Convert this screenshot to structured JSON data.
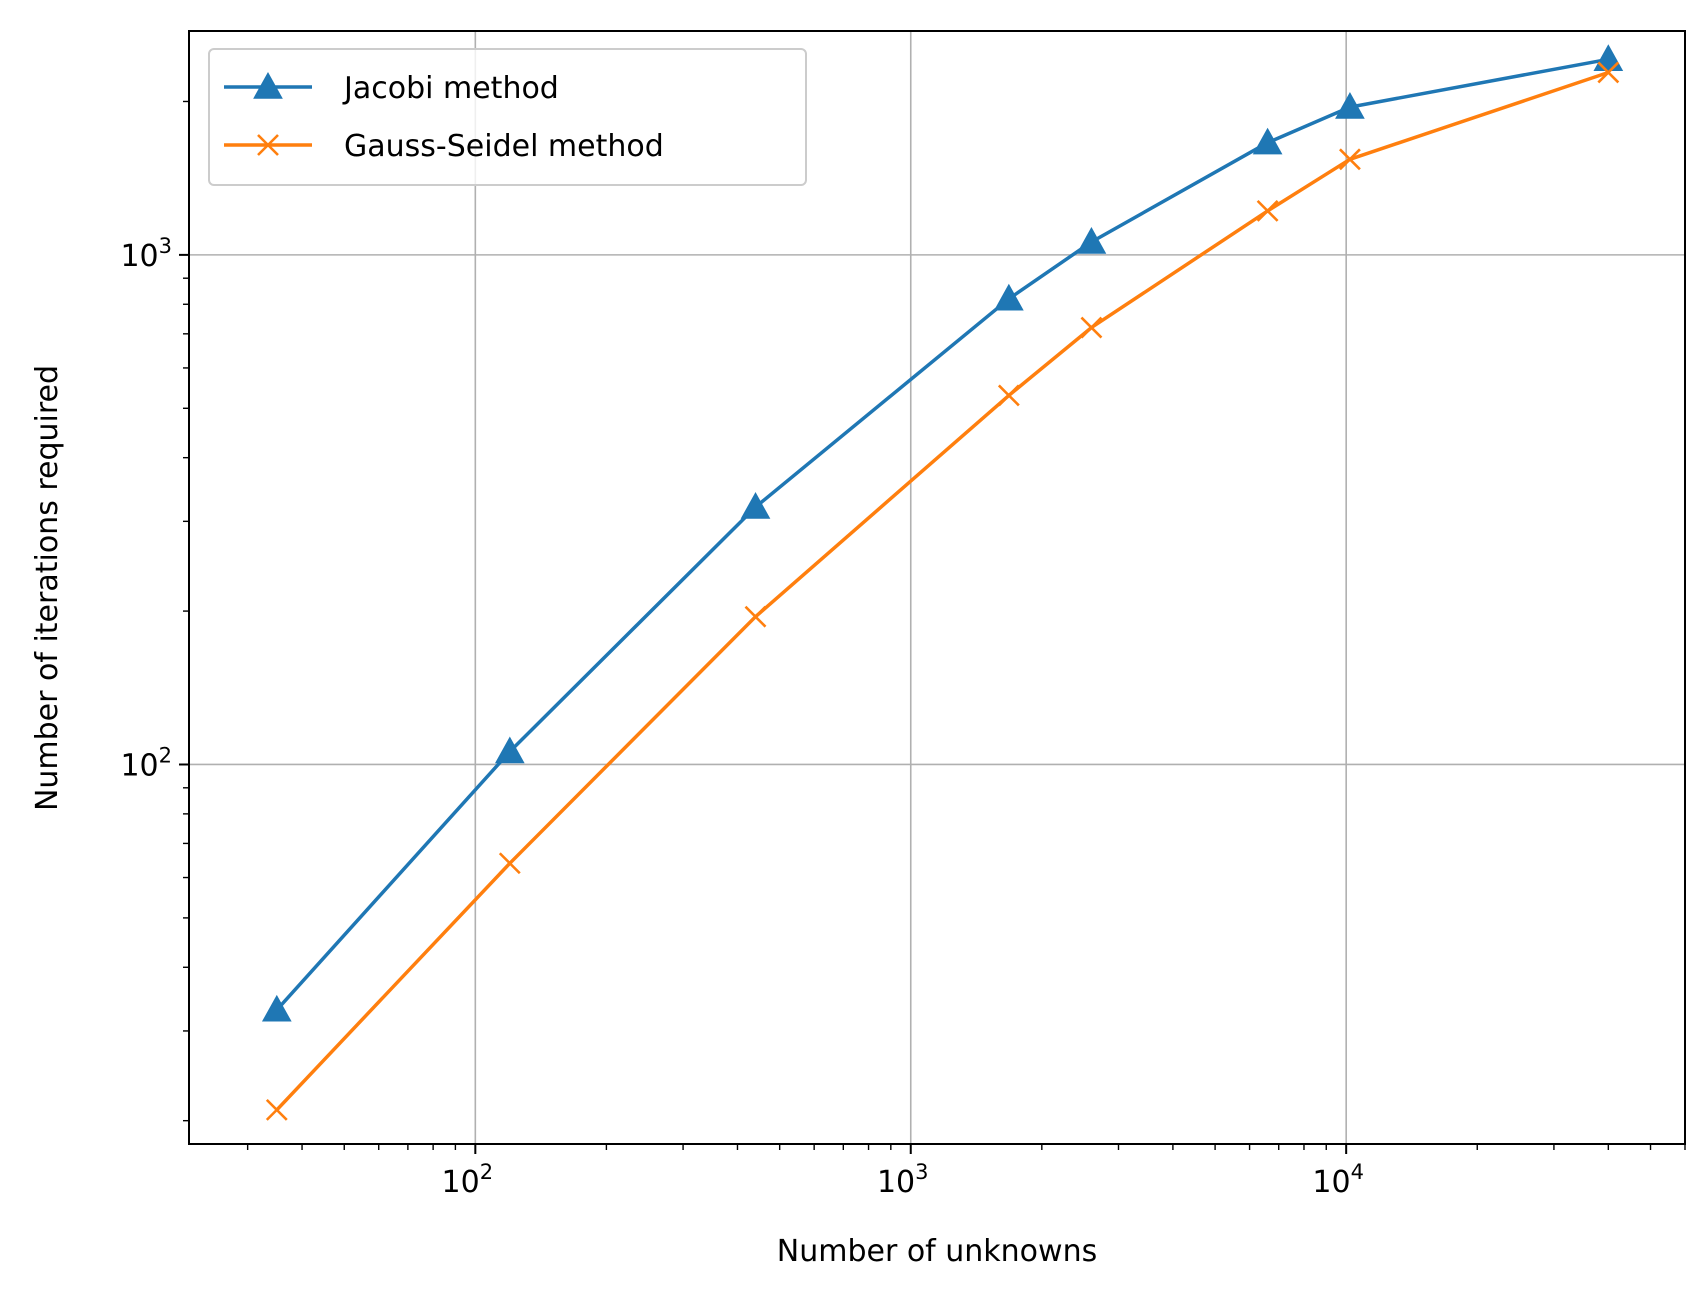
{
  "chart_data": {
    "type": "line",
    "xlabel": "Number of unknowns",
    "ylabel": "Number of iterations required",
    "x_scale": "log",
    "y_scale": "log",
    "xlim": [
      22,
      60000
    ],
    "ylim": [
      18,
      2750
    ],
    "grid": true,
    "legend_position": "top-left",
    "x_ticks": [
      {
        "value": 100,
        "base": "10",
        "exp": "2"
      },
      {
        "value": 1000,
        "base": "10",
        "exp": "3"
      },
      {
        "value": 10000,
        "base": "10",
        "exp": "4"
      }
    ],
    "y_ticks": [
      {
        "value": 100,
        "base": "10",
        "exp": "2"
      },
      {
        "value": 1000,
        "base": "10",
        "exp": "3"
      }
    ],
    "series": [
      {
        "name": "Jacobi method",
        "color": "#1f77b4",
        "marker": "triangle",
        "x": [
          35,
          120,
          440,
          1680,
          2600,
          6600,
          10200,
          40000
        ],
        "y": [
          33,
          106,
          320,
          820,
          1060,
          1660,
          1950,
          2420
        ]
      },
      {
        "name": "Gauss-Seidel method",
        "color": "#ff7f0e",
        "marker": "x",
        "x": [
          35,
          120,
          440,
          1680,
          2600,
          6600,
          10200,
          40000
        ],
        "y": [
          21,
          64,
          195,
          530,
          720,
          1220,
          1540,
          2280
        ]
      }
    ]
  }
}
